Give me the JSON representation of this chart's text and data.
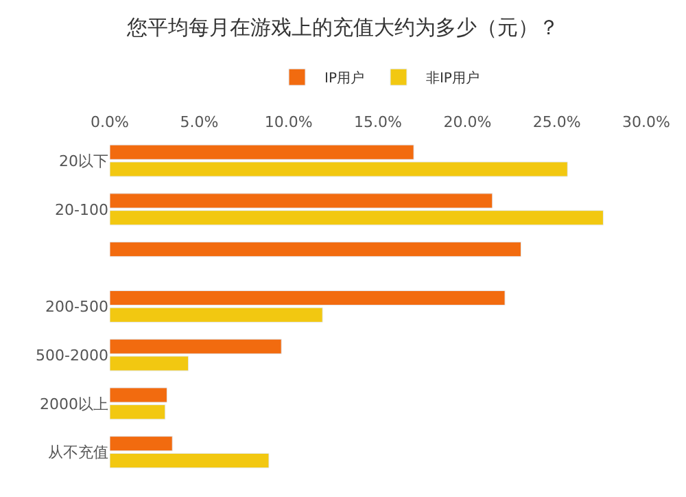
{
  "chart_data": {
    "type": "bar",
    "orientation": "horizontal",
    "title": "您平均每月在游戏上的充值大约为多少（元）？",
    "categories": [
      "20以下",
      "20-100",
      null,
      "200-500",
      "500-2000",
      "2000以上",
      "从不充值"
    ],
    "series": [
      {
        "name": "IP用户",
        "color": "#f26b0f",
        "values": [
          17.0,
          21.4,
          23.0,
          22.1,
          9.6,
          3.2,
          3.5
        ]
      },
      {
        "name": "非IP用户",
        "color": "#f2c811",
        "values": [
          25.6,
          27.6,
          null,
          11.9,
          4.4,
          3.1,
          8.9
        ]
      }
    ],
    "xlim": [
      0,
      30
    ],
    "xticks": [
      {
        "value": 0,
        "label": "0.0%"
      },
      {
        "value": 5,
        "label": "5.0%"
      },
      {
        "value": 10,
        "label": "10.0%"
      },
      {
        "value": 15,
        "label": "15.0%"
      },
      {
        "value": 20,
        "label": "20.0%"
      },
      {
        "value": 25,
        "label": "25.0%"
      },
      {
        "value": 30,
        "label": "30.0%"
      }
    ],
    "legend": "top"
  }
}
